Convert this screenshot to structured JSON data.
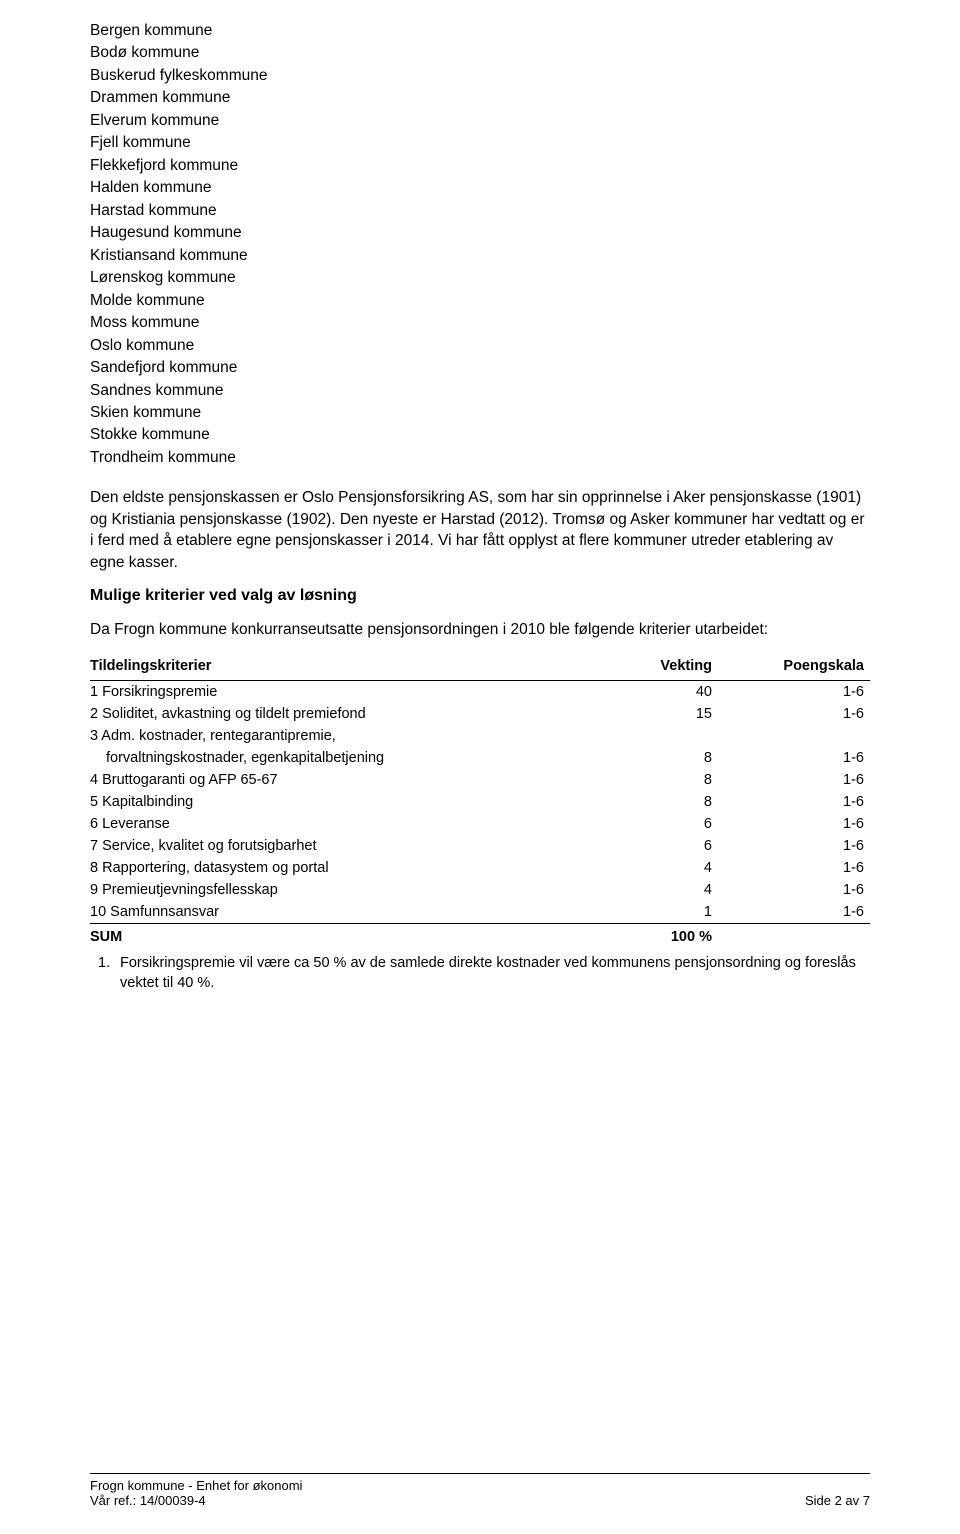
{
  "kommuner": [
    "Bergen kommune",
    "Bodø kommune",
    "Buskerud fylkeskommune",
    "Drammen kommune",
    "Elverum kommune",
    "Fjell kommune",
    "Flekkefjord kommune",
    "Halden kommune",
    "Harstad kommune",
    "Haugesund kommune",
    "Kristiansand kommune",
    "Lørenskog kommune",
    "Molde kommune",
    "Moss kommune",
    "Oslo kommune",
    "Sandefjord kommune",
    "Sandnes kommune",
    "Skien kommune",
    "Stokke kommune",
    "Trondheim kommune"
  ],
  "para1": "Den eldste pensjonskassen er Oslo Pensjonsforsikring AS, som har sin opprinnelse i Aker pensjonskasse (1901) og Kristiania pensjonskasse (1902). Den nyeste er Harstad (2012). Tromsø og Asker kommuner har vedtatt og er i ferd med å etablere egne pensjonskasser i 2014. Vi har fått opplyst at flere kommuner utreder etablering av egne kasser.",
  "subhead1": "Mulige kriterier ved valg av løsning",
  "para2": "Da Frogn kommune konkurranseutsatte pensjonsordningen i 2010 ble følgende kriterier utarbeidet:",
  "criteria": {
    "columns": [
      "Tildelingskriterier",
      "Vekting",
      "Poengskala"
    ],
    "col_align": [
      "left",
      "right",
      "right"
    ],
    "rows": [
      {
        "label": "1 Forsikringspremie",
        "vekt": "40",
        "skala": "1-6",
        "indent": false
      },
      {
        "label": "2 Soliditet, avkastning og tildelt premiefond",
        "vekt": "15",
        "skala": "1-6",
        "indent": false
      },
      {
        "label": "3 Adm. kostnader, rentegarantipremie,",
        "vekt": "",
        "skala": "",
        "indent": false
      },
      {
        "label": "forvaltningskostnader, egenkapitalbetjening",
        "vekt": "8",
        "skala": "1-6",
        "indent": true
      },
      {
        "label": "4 Bruttogaranti og AFP 65-67",
        "vekt": "8",
        "skala": "1-6",
        "indent": false
      },
      {
        "label": "5 Kapitalbinding",
        "vekt": "8",
        "skala": "1-6",
        "indent": false
      },
      {
        "label": "6 Leveranse",
        "vekt": "6",
        "skala": "1-6",
        "indent": false
      },
      {
        "label": "7 Service, kvalitet og forutsigbarhet",
        "vekt": "6",
        "skala": "1-6",
        "indent": false
      },
      {
        "label": "8 Rapportering, datasystem og portal",
        "vekt": "4",
        "skala": "1-6",
        "indent": false
      },
      {
        "label": "9 Premieutjevningsfellesskap",
        "vekt": "4",
        "skala": "1-6",
        "indent": false
      },
      {
        "label": "10 Samfunnsansvar",
        "vekt": "1",
        "skala": "1-6",
        "indent": false
      }
    ],
    "sum": {
      "label": "SUM",
      "vekt": "100 %",
      "skala": ""
    }
  },
  "footnote": {
    "num": "1.",
    "text": "Forsikringspremie vil være ca 50 % av de samlede direkte kostnader ved kommunens pensjonsordning og foreslås vektet til 40 %."
  },
  "footer": {
    "org": "Frogn kommune - Enhet for økonomi",
    "ref_label": "Vår ref.: 14/00039-4",
    "page": "Side 2 av 7"
  }
}
